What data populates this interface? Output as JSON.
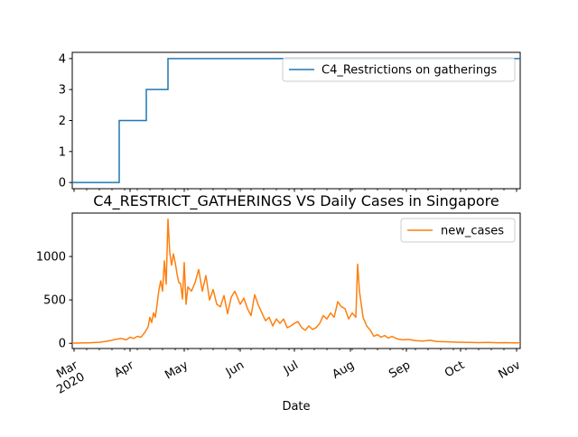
{
  "chart_data": [
    {
      "type": "line",
      "title": "",
      "xlabel": "",
      "ylabel": "",
      "ylim": [
        -0.2,
        4.2
      ],
      "yticks": [
        0,
        1,
        2,
        3,
        4
      ],
      "legend": "upper right",
      "series": [
        {
          "name": "C4_Restrictions on gatherings",
          "color": "#1f77b4",
          "steps": [
            {
              "date": "2020-02-29",
              "value": 0
            },
            {
              "date": "2020-03-26",
              "value": 2
            },
            {
              "date": "2020-04-10",
              "value": 3
            },
            {
              "date": "2020-04-22",
              "value": 4
            },
            {
              "date": "2020-11-03",
              "value": 4
            }
          ]
        }
      ]
    },
    {
      "type": "line",
      "title": "C4_RESTRICT_GATHERINGS VS Daily Cases in Singapore",
      "xlabel": "Date",
      "ylabel": "",
      "ylim": [
        -60,
        1500
      ],
      "yticks": [
        0,
        500,
        1000
      ],
      "legend": "upper right",
      "x_range": [
        "2020-02-29",
        "2020-11-03"
      ],
      "x_ticks": [
        {
          "date": "2020-03-01",
          "label": "Mar",
          "sublabel": "2020"
        },
        {
          "date": "2020-04-01",
          "label": "Apr",
          "sublabel": ""
        },
        {
          "date": "2020-05-01",
          "label": "May",
          "sublabel": ""
        },
        {
          "date": "2020-06-01",
          "label": "Jun",
          "sublabel": ""
        },
        {
          "date": "2020-07-01",
          "label": "Jul",
          "sublabel": ""
        },
        {
          "date": "2020-08-01",
          "label": "Aug",
          "sublabel": ""
        },
        {
          "date": "2020-09-01",
          "label": "Sep",
          "sublabel": ""
        },
        {
          "date": "2020-10-01",
          "label": "Oct",
          "sublabel": ""
        },
        {
          "date": "2020-11-01",
          "label": "Nov",
          "sublabel": ""
        }
      ],
      "series": [
        {
          "name": "new_cases",
          "color": "#ff7f0e",
          "points": [
            [
              "2020-02-29",
              3
            ],
            [
              "2020-03-03",
              2
            ],
            [
              "2020-03-06",
              5
            ],
            [
              "2020-03-09",
              4
            ],
            [
              "2020-03-12",
              9
            ],
            [
              "2020-03-15",
              12
            ],
            [
              "2020-03-18",
              20
            ],
            [
              "2020-03-21",
              30
            ],
            [
              "2020-03-24",
              45
            ],
            [
              "2020-03-27",
              55
            ],
            [
              "2020-03-30",
              40
            ],
            [
              "2020-04-01",
              70
            ],
            [
              "2020-04-03",
              55
            ],
            [
              "2020-04-05",
              80
            ],
            [
              "2020-04-07",
              70
            ],
            [
              "2020-04-09",
              120
            ],
            [
              "2020-04-11",
              190
            ],
            [
              "2020-04-12",
              300
            ],
            [
              "2020-04-13",
              240
            ],
            [
              "2020-04-14",
              350
            ],
            [
              "2020-04-15",
              300
            ],
            [
              "2020-04-16",
              450
            ],
            [
              "2020-04-17",
              620
            ],
            [
              "2020-04-18",
              720
            ],
            [
              "2020-04-19",
              600
            ],
            [
              "2020-04-20",
              950
            ],
            [
              "2020-04-21",
              680
            ],
            [
              "2020-04-22",
              1430
            ],
            [
              "2020-04-23",
              1040
            ],
            [
              "2020-04-24",
              900
            ],
            [
              "2020-04-25",
              1030
            ],
            [
              "2020-04-26",
              930
            ],
            [
              "2020-04-27",
              800
            ],
            [
              "2020-04-28",
              700
            ],
            [
              "2020-04-29",
              690
            ],
            [
              "2020-04-30",
              510
            ],
            [
              "2020-05-01",
              930
            ],
            [
              "2020-05-02",
              450
            ],
            [
              "2020-05-03",
              650
            ],
            [
              "2020-05-05",
              600
            ],
            [
              "2020-05-07",
              700
            ],
            [
              "2020-05-09",
              850
            ],
            [
              "2020-05-11",
              600
            ],
            [
              "2020-05-13",
              780
            ],
            [
              "2020-05-15",
              500
            ],
            [
              "2020-05-17",
              620
            ],
            [
              "2020-05-19",
              450
            ],
            [
              "2020-05-21",
              420
            ],
            [
              "2020-05-23",
              550
            ],
            [
              "2020-05-25",
              340
            ],
            [
              "2020-05-27",
              530
            ],
            [
              "2020-05-29",
              600
            ],
            [
              "2020-06-01",
              450
            ],
            [
              "2020-06-03",
              520
            ],
            [
              "2020-06-05",
              400
            ],
            [
              "2020-06-07",
              320
            ],
            [
              "2020-06-09",
              560
            ],
            [
              "2020-06-11",
              440
            ],
            [
              "2020-06-13",
              350
            ],
            [
              "2020-06-15",
              260
            ],
            [
              "2020-06-17",
              300
            ],
            [
              "2020-06-19",
              200
            ],
            [
              "2020-06-21",
              280
            ],
            [
              "2020-06-23",
              230
            ],
            [
              "2020-06-25",
              280
            ],
            [
              "2020-06-27",
              180
            ],
            [
              "2020-06-29",
              200
            ],
            [
              "2020-07-01",
              230
            ],
            [
              "2020-07-03",
              250
            ],
            [
              "2020-07-05",
              180
            ],
            [
              "2020-07-07",
              150
            ],
            [
              "2020-07-09",
              200
            ],
            [
              "2020-07-11",
              160
            ],
            [
              "2020-07-13",
              180
            ],
            [
              "2020-07-15",
              230
            ],
            [
              "2020-07-17",
              320
            ],
            [
              "2020-07-19",
              280
            ],
            [
              "2020-07-21",
              350
            ],
            [
              "2020-07-23",
              300
            ],
            [
              "2020-07-25",
              480
            ],
            [
              "2020-07-27",
              420
            ],
            [
              "2020-07-29",
              400
            ],
            [
              "2020-07-31",
              280
            ],
            [
              "2020-08-02",
              350
            ],
            [
              "2020-08-04",
              300
            ],
            [
              "2020-08-05",
              910
            ],
            [
              "2020-08-06",
              600
            ],
            [
              "2020-08-08",
              300
            ],
            [
              "2020-08-10",
              200
            ],
            [
              "2020-08-12",
              150
            ],
            [
              "2020-08-14",
              80
            ],
            [
              "2020-08-16",
              100
            ],
            [
              "2020-08-18",
              70
            ],
            [
              "2020-08-20",
              90
            ],
            [
              "2020-08-22",
              60
            ],
            [
              "2020-08-24",
              80
            ],
            [
              "2020-08-27",
              50
            ],
            [
              "2020-08-30",
              40
            ],
            [
              "2020-09-02",
              45
            ],
            [
              "2020-09-06",
              30
            ],
            [
              "2020-09-10",
              25
            ],
            [
              "2020-09-14",
              35
            ],
            [
              "2020-09-18",
              20
            ],
            [
              "2020-09-22",
              18
            ],
            [
              "2020-09-26",
              15
            ],
            [
              "2020-10-01",
              12
            ],
            [
              "2020-10-06",
              10
            ],
            [
              "2020-10-11",
              8
            ],
            [
              "2020-10-16",
              10
            ],
            [
              "2020-10-21",
              7
            ],
            [
              "2020-10-26",
              8
            ],
            [
              "2020-10-31",
              6
            ],
            [
              "2020-11-03",
              7
            ]
          ]
        }
      ]
    }
  ]
}
